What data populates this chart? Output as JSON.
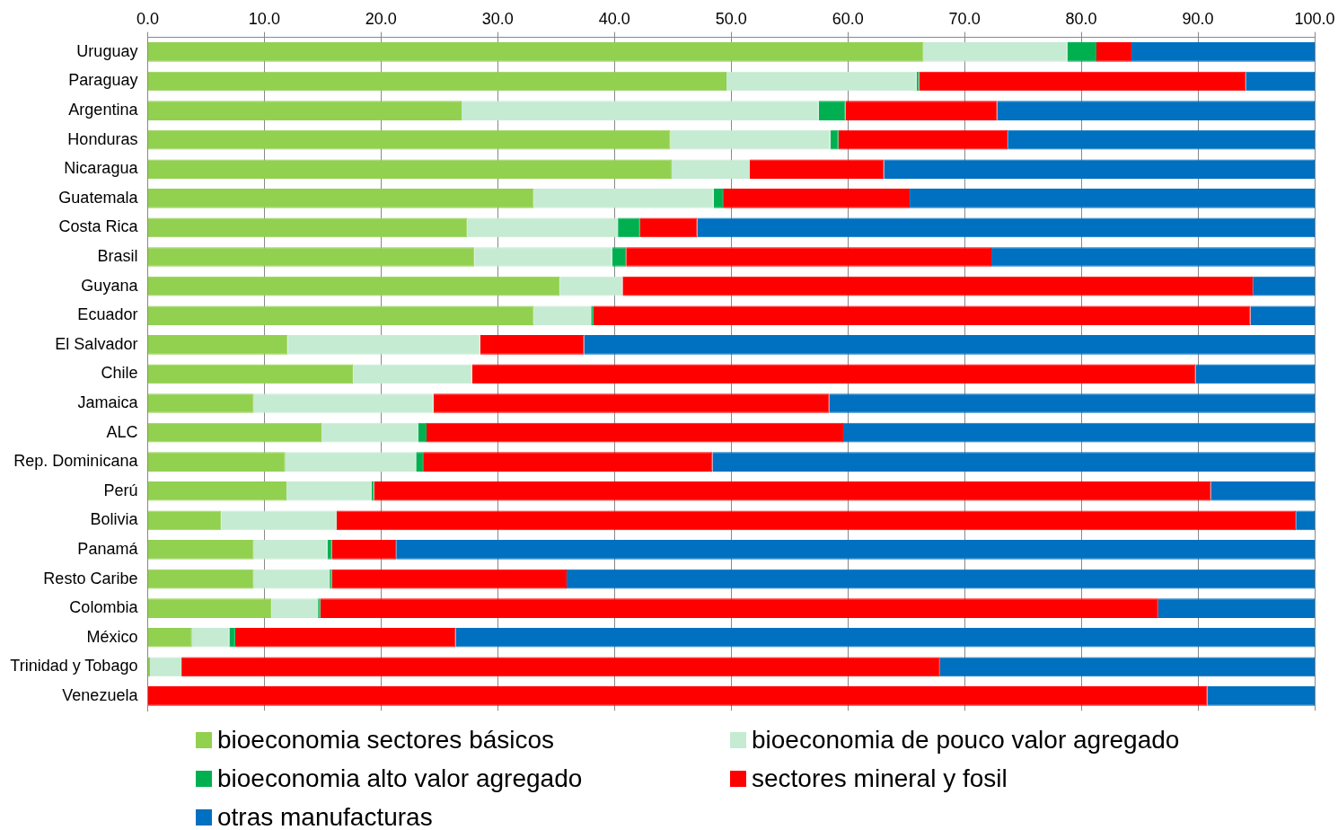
{
  "chart_data": {
    "type": "bar",
    "orientation": "horizontal",
    "stacked": true,
    "categories": [
      "Uruguay",
      "Paraguay",
      "Argentina",
      "Honduras",
      "Nicaragua",
      "Guatemala",
      "Costa Rica",
      "Brasil",
      "Guyana",
      "Ecuador",
      "El Salvador",
      "Chile",
      "Jamaica",
      "ALC",
      "Rep. Dominicana",
      "Perú",
      "Bolivia",
      "Panamá",
      "Resto Caribe",
      "Colombia",
      "México",
      "Trinidad y Tobago",
      "Venezuela"
    ],
    "series": [
      {
        "name": "bioeconomia sectores básicos",
        "color": "#92d050",
        "values": [
          66.5,
          49.6,
          26.9,
          44.8,
          44.9,
          33.1,
          27.4,
          28.0,
          35.3,
          33.1,
          12.0,
          17.6,
          9.1,
          14.9,
          11.8,
          11.9,
          6.3,
          9.1,
          9.1,
          10.6,
          3.8,
          0.2,
          0
        ]
      },
      {
        "name": "bioeconomia de pouco valor agregado",
        "color": "#c5ebd2",
        "values": [
          12.3,
          16.3,
          30.6,
          13.7,
          6.7,
          15.4,
          12.9,
          11.8,
          5.4,
          4.9,
          16.5,
          10.2,
          15.4,
          8.3,
          11.2,
          7.3,
          9.9,
          6.3,
          6.5,
          4.0,
          3.2,
          2.7,
          0
        ]
      },
      {
        "name": "bioeconomia alto valor agregado",
        "color": "#00b050",
        "values": [
          2.5,
          0.2,
          2.3,
          0.7,
          0,
          0.8,
          1.9,
          1.2,
          0,
          0.2,
          0,
          0,
          0,
          0.7,
          0.6,
          0.2,
          0,
          0.4,
          0.2,
          0.2,
          0.5,
          0,
          0
        ]
      },
      {
        "name": "sectores mineral y fosil",
        "color": "#ff0000",
        "values": [
          3.0,
          28.0,
          13.0,
          14.5,
          11.5,
          16.0,
          4.9,
          31.3,
          54.0,
          56.3,
          8.9,
          62.0,
          33.9,
          35.7,
          24.8,
          71.7,
          82.2,
          5.5,
          20.1,
          71.8,
          18.9,
          65.0,
          90.8
        ]
      },
      {
        "name": "otras manufacturas",
        "color": "#0070c0",
        "values": [
          15.7,
          5.9,
          27.2,
          26.3,
          36.9,
          34.7,
          52.9,
          27.7,
          5.3,
          5.5,
          62.6,
          10.2,
          41.6,
          40.4,
          51.6,
          8.9,
          1.6,
          78.7,
          64.1,
          13.4,
          73.6,
          32.1,
          9.2
        ]
      }
    ],
    "xlim": [
      0,
      100
    ],
    "xticks": [
      {
        "value": 0,
        "label": "0.0"
      },
      {
        "value": 10,
        "label": "10.0"
      },
      {
        "value": 20,
        "label": "20.0"
      },
      {
        "value": 30,
        "label": "30.0"
      },
      {
        "value": 40,
        "label": "40.0"
      },
      {
        "value": 50,
        "label": "50.0"
      },
      {
        "value": 60,
        "label": "60.0"
      },
      {
        "value": 70,
        "label": "70.0"
      },
      {
        "value": 80,
        "label": "80.0"
      },
      {
        "value": 90,
        "label": "90.0"
      },
      {
        "value": 100,
        "label": "100.0"
      }
    ],
    "grid": "x",
    "legend": "bottom"
  }
}
